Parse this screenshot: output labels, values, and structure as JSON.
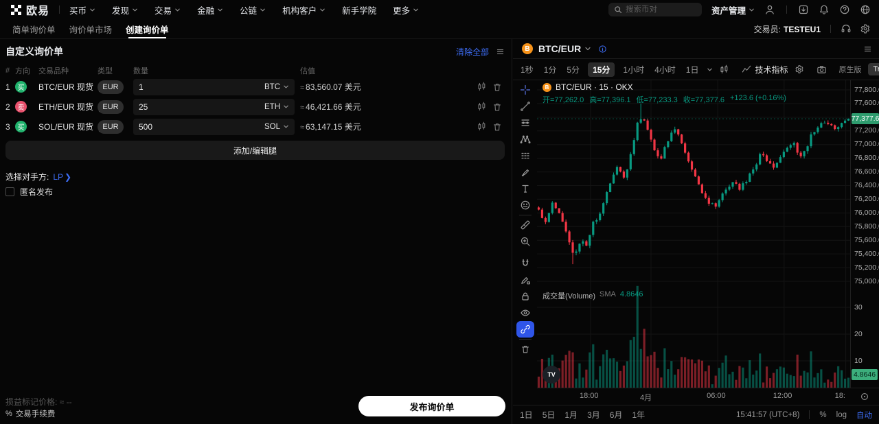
{
  "navbar": {
    "brand": "欧易",
    "menu": [
      {
        "label": "买币",
        "chevron": true
      },
      {
        "label": "发现",
        "chevron": true
      },
      {
        "label": "交易",
        "chevron": true
      },
      {
        "label": "金融",
        "chevron": true
      },
      {
        "label": "公链",
        "chevron": true
      },
      {
        "label": "机构客户",
        "chevron": true
      },
      {
        "label": "新手学院",
        "chevron": false
      },
      {
        "label": "更多",
        "chevron": true
      }
    ],
    "search_placeholder": "搜索币对",
    "assets_label": "资产管理",
    "right_icons": [
      "user-icon",
      "download-icon",
      "bell-icon",
      "help-icon",
      "globe-icon"
    ]
  },
  "tabbar": {
    "tabs": [
      {
        "label": "简单询价单",
        "active": false
      },
      {
        "label": "询价单市场",
        "active": false
      },
      {
        "label": "创建询价单",
        "active": true
      }
    ],
    "trader_label": "交易员:",
    "trader_value": "TESTEU1",
    "right_icons": [
      "support-icon",
      "gear-icon"
    ]
  },
  "rfq": {
    "title": "自定义询价单",
    "clear_all": "清除全部",
    "approx_symbol": "≈",
    "columns": {
      "index": "#",
      "direction": "方向",
      "pair": "交易品种",
      "type": "类型",
      "amount": "数量",
      "value": "估值"
    },
    "rows": [
      {
        "index": "1",
        "direction": "买",
        "side": "buy",
        "pair": "BTC/EUR 现货",
        "currency": "EUR",
        "amount": "1",
        "asset": "BTC",
        "value": "83,560.07 美元"
      },
      {
        "index": "2",
        "direction": "卖",
        "side": "sell",
        "pair": "ETH/EUR 现货",
        "currency": "EUR",
        "amount": "25",
        "asset": "ETH",
        "value": "46,421.66 美元"
      },
      {
        "index": "3",
        "direction": "买",
        "side": "buy",
        "pair": "SOL/EUR 现货",
        "currency": "EUR",
        "amount": "500",
        "asset": "SOL",
        "value": "63,147.15 美元"
      }
    ],
    "row_action_icons": [
      "candles-icon",
      "trash-icon"
    ],
    "add_leg_button": "添加/编辑腿",
    "counterparty_label": "选择对手方:",
    "counterparty_value": "LP",
    "anonymous_label": "匿名发布",
    "anonymous_checked": false,
    "pnl_mark_label": "损益标记价格: ≈ --",
    "fee_label": "交易手续费",
    "submit_button": "发布询价单"
  },
  "chart": {
    "symbol": "BTC/EUR",
    "timeframes": [
      {
        "label": "1秒",
        "active": false
      },
      {
        "label": "1分",
        "active": false
      },
      {
        "label": "5分",
        "active": false
      },
      {
        "label": "15分",
        "active": true
      },
      {
        "label": "1小时",
        "active": false
      },
      {
        "label": "4小时",
        "active": false
      },
      {
        "label": "1日",
        "active": false
      }
    ],
    "indicators_label": "技术指标",
    "toggle_original": "原生版",
    "toggle_tradingview": "TradingView",
    "legend_title": "BTC/EUR · 15 · OKX",
    "ohlc_parts": [
      {
        "k": "开",
        "v": "77,262.0"
      },
      {
        "k": "高",
        "v": "77,396.1"
      },
      {
        "k": "低",
        "v": "77,233.3"
      },
      {
        "k": "收",
        "v": "77,377.6"
      }
    ],
    "change_text": "+123.6 (+0.16%)",
    "volume_title": "成交量(Volume)",
    "sma_label": "SMA",
    "sma_value": "4.8646",
    "price_badge": "77,377.6",
    "volume_badge": "4.8646",
    "ranges": [
      "1日",
      "5日",
      "1月",
      "3月",
      "6月",
      "1年"
    ],
    "clock": "15:41:57 (UTC+8)",
    "percent_label": "%",
    "log_label": "log",
    "auto_label": "自动",
    "drawing_tools": [
      "crosshair",
      "trend-line",
      "fib-lines",
      "xabcd-pattern",
      "forecast-lines",
      "brush",
      "text",
      "emoji",
      "divider",
      "ruler",
      "zoom-in",
      "gap",
      "magnet",
      "drawing-lock",
      "lock",
      "hide-drawings",
      "link",
      "divider",
      "trash"
    ],
    "drawing_tool_active": "link"
  },
  "chart_data": {
    "type": "candlestick",
    "symbol": "BTC/EUR",
    "interval": "15",
    "exchange": "OKX",
    "ohlc_current": {
      "open": 77262.0,
      "high": 77396.1,
      "low": 77233.3,
      "close": 77377.6,
      "change": 123.6,
      "change_pct": 0.16
    },
    "volume_sma": 4.8646,
    "price_axis_max": 77800,
    "price_axis_min": 75000,
    "price_grid_step": 200,
    "price_label_hidden": 77400,
    "volume_axis_ticks": [
      30,
      20,
      10
    ],
    "time_ticks": [
      {
        "label": "18:00",
        "pos": 0.171
      },
      {
        "label": "4月",
        "pos": 0.364
      },
      {
        "label": "06:00",
        "pos": 0.577
      },
      {
        "label": "12:00",
        "pos": 0.789
      },
      {
        "label": "18:",
        "pos": 0.986
      }
    ],
    "keypoints": [
      [
        0.0,
        76050
      ],
      [
        0.02,
        75850
      ],
      [
        0.045,
        76150
      ],
      [
        0.07,
        75950
      ],
      [
        0.095,
        75650
      ],
      [
        0.115,
        75350
      ],
      [
        0.135,
        75600
      ],
      [
        0.155,
        75500
      ],
      [
        0.175,
        75850
      ],
      [
        0.2,
        76000
      ],
      [
        0.225,
        76350
      ],
      [
        0.25,
        76700
      ],
      [
        0.28,
        76500
      ],
      [
        0.3,
        76900
      ],
      [
        0.32,
        77350
      ],
      [
        0.335,
        77400
      ],
      [
        0.355,
        77150
      ],
      [
        0.375,
        76900
      ],
      [
        0.395,
        76800
      ],
      [
        0.415,
        77050
      ],
      [
        0.435,
        77250
      ],
      [
        0.455,
        77100
      ],
      [
        0.475,
        76850
      ],
      [
        0.5,
        76600
      ],
      [
        0.525,
        76300
      ],
      [
        0.55,
        76150
      ],
      [
        0.575,
        76100
      ],
      [
        0.6,
        76350
      ],
      [
        0.625,
        76450
      ],
      [
        0.65,
        76350
      ],
      [
        0.675,
        76500
      ],
      [
        0.7,
        76700
      ],
      [
        0.72,
        76900
      ],
      [
        0.74,
        76750
      ],
      [
        0.76,
        76650
      ],
      [
        0.78,
        76800
      ],
      [
        0.8,
        76950
      ],
      [
        0.82,
        77050
      ],
      [
        0.84,
        76800
      ],
      [
        0.86,
        76900
      ],
      [
        0.88,
        77150
      ],
      [
        0.905,
        77300
      ],
      [
        0.93,
        77350
      ],
      [
        0.955,
        77200
      ],
      [
        0.975,
        77300
      ],
      [
        1.0,
        77377.6
      ]
    ],
    "wick_high": {
      "t": 0.335,
      "price": 77600
    },
    "wick_low": {
      "t": 0.115,
      "price": 75250
    },
    "volume_spikes": [
      [
        0.115,
        9
      ],
      [
        0.3,
        17
      ],
      [
        0.322,
        38
      ],
      [
        0.34,
        22
      ],
      [
        0.6,
        12
      ],
      [
        0.88,
        10
      ],
      [
        0.97,
        8
      ]
    ],
    "candle_count": 92,
    "seed": 11,
    "up_color": "#089981",
    "down_color": "#f23645"
  },
  "colors": {
    "accent": "#3e6ef7",
    "buy_green": "#20b26c",
    "sell_red": "#e8506c",
    "up": "#089981",
    "down": "#f23645"
  }
}
